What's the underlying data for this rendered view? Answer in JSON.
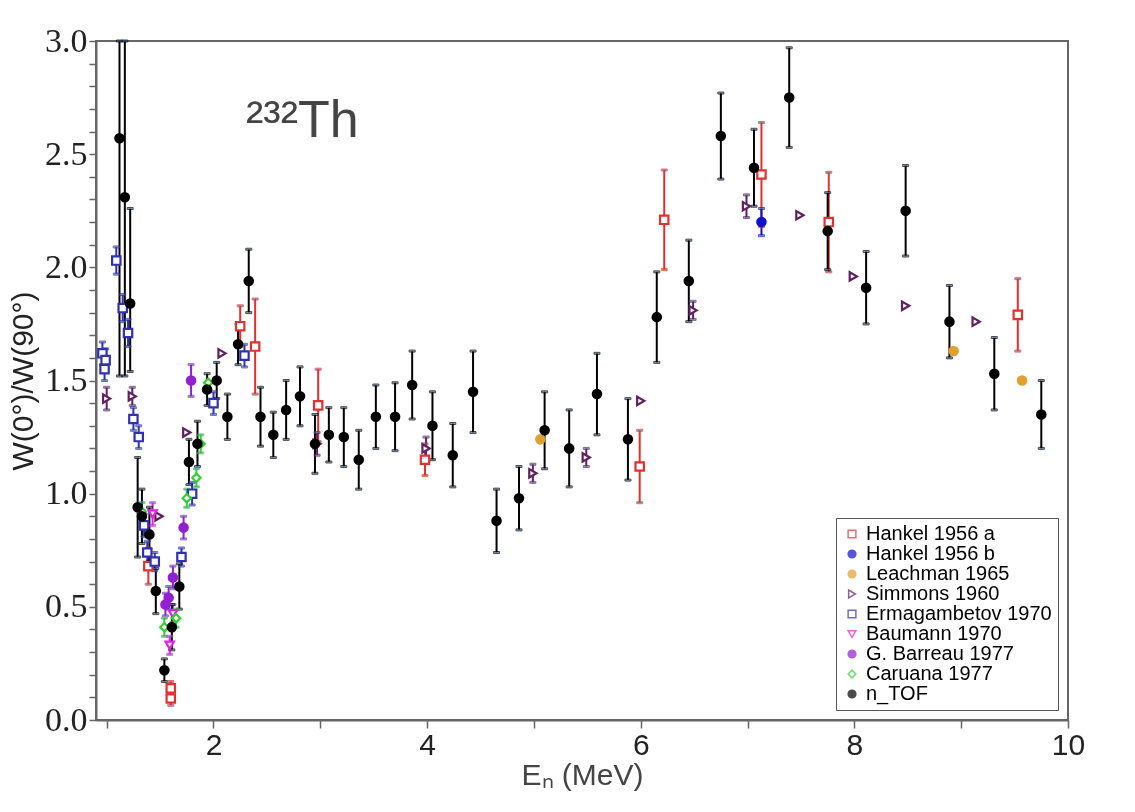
{
  "chart_data": {
    "type": "scatter",
    "xlabel": "Eₙ (MeV)",
    "ylabel": "W(0°)/W(90°)",
    "annotations": [
      "²³²Th"
    ],
    "xlim": [
      0.9,
      10
    ],
    "xticks": [
      {
        "value": 1,
        "label": null
      },
      2,
      {
        "value": 3,
        "label": null
      },
      4,
      {
        "value": 5,
        "label": null
      },
      6,
      {
        "value": 7,
        "label": null
      },
      8,
      {
        "value": 9,
        "label": null
      },
      10
    ],
    "ylim": [
      0,
      3
    ],
    "yticks": [
      {
        "value": 0,
        "label": "0.0"
      },
      {
        "value": 0.1,
        "label": null
      },
      {
        "value": 0.2,
        "label": null
      },
      {
        "value": 0.3,
        "label": null
      },
      {
        "value": 0.4,
        "label": null
      },
      {
        "value": 0.5,
        "label": "0.5"
      },
      {
        "value": 0.6,
        "label": null
      },
      {
        "value": 0.7,
        "label": null
      },
      {
        "value": 0.8,
        "label": null
      },
      {
        "value": 0.9,
        "label": null
      },
      {
        "value": 1,
        "label": "1.0"
      },
      {
        "value": 1.1,
        "label": null
      },
      {
        "value": 1.2,
        "label": null
      },
      {
        "value": 1.3,
        "label": null
      },
      {
        "value": 1.4,
        "label": null
      },
      {
        "value": 1.5,
        "label": "1.5"
      },
      {
        "value": 1.6,
        "label": null
      },
      {
        "value": 1.7,
        "label": null
      },
      {
        "value": 1.8,
        "label": null
      },
      {
        "value": 1.9,
        "label": null
      },
      {
        "value": 2,
        "label": "2.0"
      },
      {
        "value": 2.1,
        "label": null
      },
      {
        "value": 2.2,
        "label": null
      },
      {
        "value": 2.3,
        "label": null
      },
      {
        "value": 2.4,
        "label": null
      },
      {
        "value": 2.5,
        "label": "2.5"
      },
      {
        "value": 2.6,
        "label": null
      },
      {
        "value": 2.7,
        "label": null
      },
      {
        "value": 2.8,
        "label": null
      },
      {
        "value": 2.9,
        "label": null
      },
      {
        "value": 3,
        "label": "3.0"
      }
    ],
    "grid": false,
    "legend": "bottom right",
    "series": [
      {
        "name": "Hankel 1956 a",
        "color": "#e03030",
        "marker": "square",
        "x": [
          1.6,
          1.6,
          1.39,
          2.25,
          2.39,
          2.98,
          3.98,
          5.99,
          6.22,
          7.13,
          7.76,
          9.53
        ],
        "values": [
          0.14,
          0.095,
          0.68,
          1.74,
          1.65,
          1.39,
          1.15,
          1.12,
          2.21,
          2.41,
          2.2,
          1.79
        ],
        "errors": [
          0.03,
          0.03,
          0.08,
          0.09,
          0.21,
          0.16,
          0.07,
          0.16,
          0.22,
          0.23,
          0.22,
          0.16
        ]
      },
      {
        "name": "Hankel 1956 b",
        "color": "#1010d0",
        "marker": "circle",
        "x": [
          7.13
        ],
        "values": [
          2.2
        ],
        "errors": [
          0.06
        ]
      },
      {
        "name": "Leachman 1965",
        "color": "#e0a030",
        "marker": "circle",
        "x": [
          5.06,
          8.93,
          9.57
        ],
        "values": [
          1.24,
          1.63,
          1.5
        ]
      },
      {
        "name": "Simmons 1960",
        "color": "#602060",
        "marker": "triangle-right",
        "x": [
          1.0,
          1.24,
          1.49,
          1.75,
          2.08,
          2.97,
          3.99,
          4.99,
          5.49,
          6.0,
          6.49,
          6.99,
          7.49,
          7.99,
          8.48,
          9.14
        ],
        "values": [
          1.42,
          1.43,
          0.9,
          1.27,
          1.62,
          1.22,
          1.2,
          1.09,
          1.16,
          1.41,
          1.81,
          2.27,
          2.23,
          1.96,
          1.83,
          1.76
        ],
        "errors": [
          0.05,
          0.04,
          null,
          null,
          null,
          0.05,
          0.05,
          0.04,
          0.04,
          null,
          0.04,
          0.05,
          null,
          null,
          null,
          null
        ]
      },
      {
        "name": "Ermagambetov 1970",
        "color": "#3030b0",
        "marker": "square",
        "x": [
          0.96,
          0.98,
          0.99,
          1.09,
          1.15,
          1.2,
          1.25,
          1.3,
          1.35,
          1.38,
          1.45,
          1.7,
          1.8,
          2.0,
          2.29
        ],
        "values": [
          1.62,
          1.55,
          1.59,
          2.03,
          1.82,
          1.71,
          1.33,
          1.25,
          0.86,
          0.74,
          0.7,
          0.72,
          1.0,
          1.4,
          1.61
        ],
        "errors": [
          0.05,
          0.05,
          0.05,
          0.06,
          0.06,
          0.06,
          0.05,
          0.05,
          0.05,
          0.05,
          0.04,
          0.04,
          0.05,
          0.05,
          0.05
        ]
      },
      {
        "name": "Baumann 1970",
        "color": "#e020e0",
        "marker": "triangle-down",
        "x": [
          1.43,
          1.59,
          1.62
        ],
        "values": [
          0.91,
          0.33,
          0.47
        ],
        "errors": [
          0.05,
          0.04,
          0.04
        ]
      },
      {
        "name": "G. Barreau 1977",
        "color": "#9020d0",
        "marker": "circle",
        "x": [
          1.79,
          1.72,
          1.58,
          1.62,
          1.55
        ],
        "values": [
          1.5,
          0.85,
          0.54,
          0.63,
          0.51
        ],
        "errors": [
          0.07,
          0.05,
          0.05,
          0.05,
          0.05
        ]
      },
      {
        "name": "Caruana 1977",
        "color": "#30d030",
        "marker": "diamond",
        "x": [
          1.33,
          1.54,
          1.65,
          1.75,
          1.84,
          1.88,
          1.95
        ],
        "values": [
          0.92,
          0.41,
          0.45,
          0.98,
          1.07,
          1.22,
          1.49
        ],
        "errors": [
          0.04,
          0.04,
          0.04,
          0.04,
          0.04,
          0.04,
          null
        ]
      },
      {
        "name": "n_TOF",
        "color": "#000000",
        "marker": "circle",
        "x": [
          1.12,
          1.17,
          1.22,
          1.29,
          1.33,
          1.4,
          1.46,
          1.54,
          1.61,
          1.68,
          1.77,
          1.85,
          1.94,
          2.03,
          2.13,
          2.23,
          2.33,
          2.44,
          2.56,
          2.68,
          2.81,
          2.95,
          3.08,
          3.22,
          3.36,
          3.52,
          3.7,
          3.86,
          4.05,
          4.24,
          4.43,
          4.65,
          4.86,
          5.1,
          5.33,
          5.59,
          5.88,
          6.15,
          6.45,
          6.75,
          7.06,
          7.39,
          7.75,
          8.11,
          8.48,
          8.89,
          9.31,
          9.75
        ],
        "values": [
          2.57,
          2.31,
          1.84,
          0.94,
          0.9,
          0.82,
          0.57,
          0.22,
          0.41,
          0.59,
          1.14,
          1.22,
          1.46,
          1.5,
          1.34,
          1.66,
          1.94,
          1.34,
          1.26,
          1.37,
          1.43,
          1.22,
          1.26,
          1.25,
          1.15,
          1.34,
          1.34,
          1.48,
          1.3,
          1.17,
          1.45,
          0.88,
          0.98,
          1.28,
          1.2,
          1.44,
          1.24,
          1.78,
          1.94,
          2.58,
          2.44,
          2.75,
          2.16,
          1.91,
          2.25,
          1.76,
          1.53,
          1.35
        ],
        "errors": [
          [
            1.52,
            3.0
          ],
          [
            1.52,
            3.0
          ],
          [
            1.54,
            2.26
          ],
          0.22,
          0.12,
          0.12,
          0.1,
          0.05,
          0.1,
          0.1,
          0.1,
          0.1,
          0.07,
          0.08,
          0.1,
          0.09,
          0.14,
          0.13,
          0.1,
          0.13,
          0.13,
          0.13,
          0.12,
          0.13,
          0.13,
          0.14,
          0.15,
          0.15,
          0.15,
          0.14,
          0.18,
          0.14,
          0.14,
          0.17,
          0.17,
          0.18,
          0.18,
          0.2,
          0.18,
          0.19,
          0.17,
          0.22,
          0.17,
          0.16,
          0.2,
          0.16,
          0.16,
          0.15
        ]
      }
    ]
  }
}
